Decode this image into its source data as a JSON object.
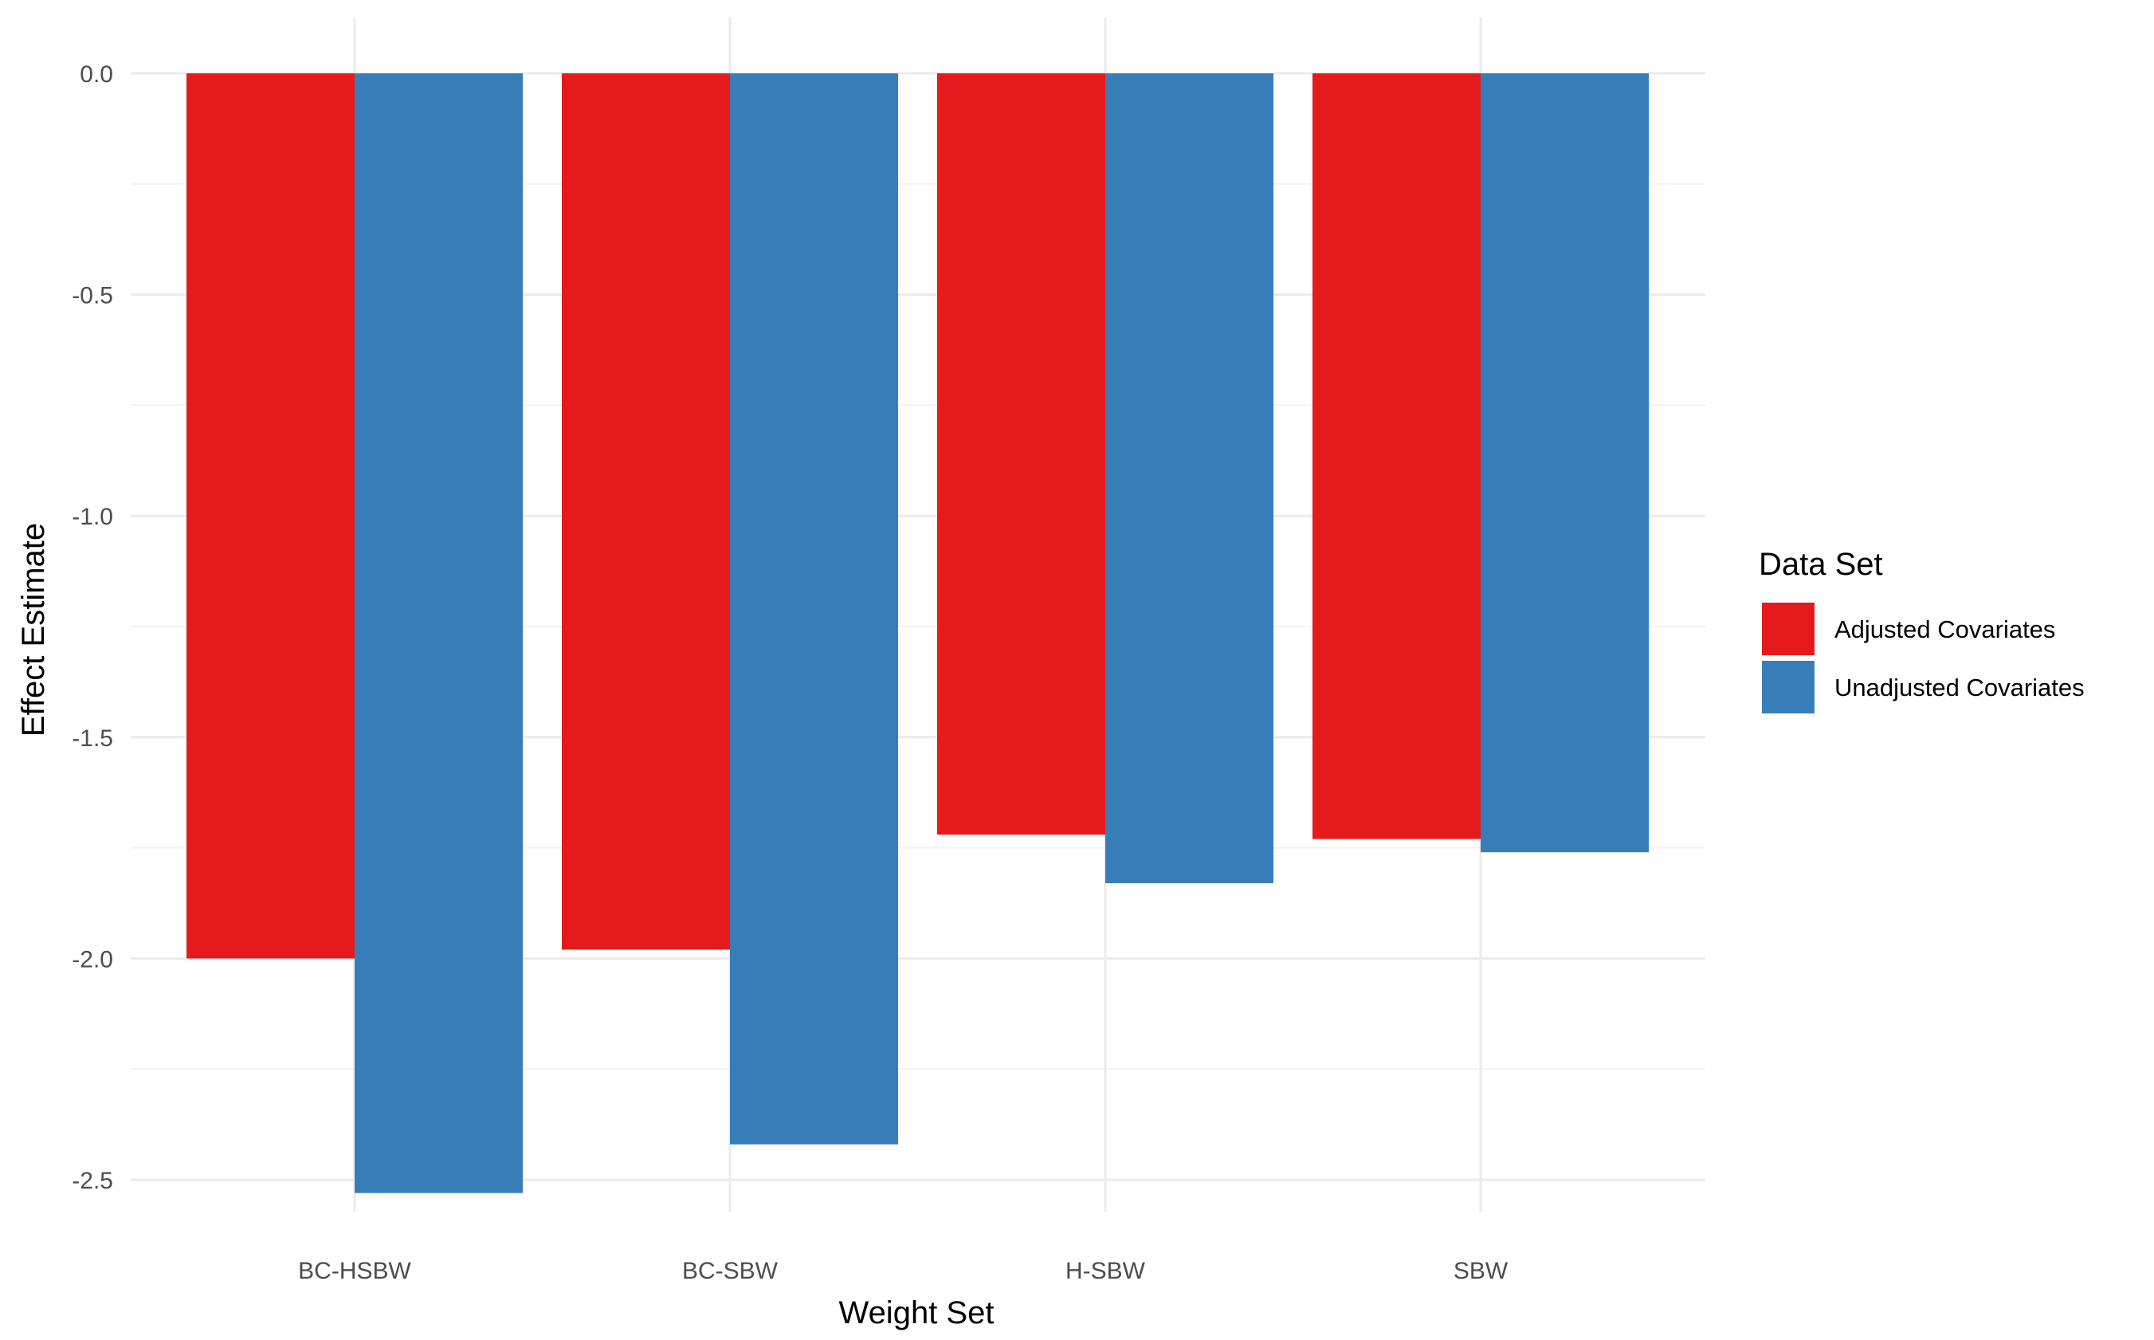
{
  "chart_data": {
    "type": "bar",
    "title": "",
    "xlabel": "Weight Set",
    "ylabel": "Effect Estimate",
    "categories": [
      "BC-HSBW",
      "BC-SBW",
      "H-SBW",
      "SBW"
    ],
    "series": [
      {
        "name": "Adjusted Covariates",
        "color": "#e41a1c",
        "values": [
          -2.0,
          -1.98,
          -1.72,
          -1.73
        ]
      },
      {
        "name": "Unadjusted Covariates",
        "color": "#377eb8",
        "values": [
          -2.53,
          -2.42,
          -1.83,
          -1.76
        ]
      }
    ],
    "ylim": [
      -2.63,
      0.13
    ],
    "yticks": [
      0.0,
      -0.5,
      -1.0,
      -1.5,
      -2.0,
      -2.5
    ],
    "ytick_labels": [
      "0.0",
      "-0.5",
      "-1.0",
      "-1.5",
      "-2.0",
      "-2.5"
    ],
    "legend": {
      "title": "Data Set",
      "position": "right"
    },
    "grid": true
  }
}
